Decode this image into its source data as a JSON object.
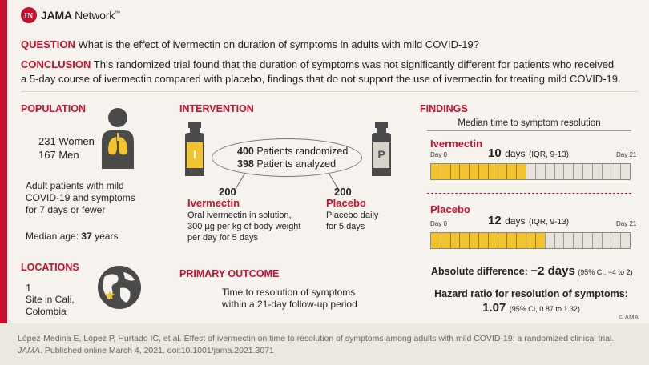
{
  "header": {
    "brand": "JAMA",
    "brand_rest": "Network",
    "tm": "™"
  },
  "question": {
    "label": "QUESTION",
    "text": "What is the effect of ivermectin on duration of symptoms in adults with mild COVID-19?"
  },
  "conclusion": {
    "label": "CONCLUSION",
    "line1": "This randomized trial found that the duration of symptoms was not significantly different for patients who received",
    "line2": "a 5-day course of ivermectin compared with placebo, findings that do not support the use of ivermectin for treating mild COVID-19."
  },
  "population": {
    "heading": "POPULATION",
    "women_count": "231",
    "women_label": "Women",
    "men_count": "167",
    "men_label": "Men",
    "desc1": "Adult patients with mild",
    "desc2": "COVID-19 and symptoms",
    "desc3": "for 7 days or fewer",
    "age_label": "Median age:",
    "age_value": "37",
    "age_unit": "years"
  },
  "locations": {
    "heading": "LOCATIONS",
    "count": "1",
    "line1": "Site in Cali,",
    "line2": "Colombia"
  },
  "intervention": {
    "heading": "INTERVENTION",
    "randomized_count": "400",
    "randomized_label": "Patients randomized",
    "analyzed_count": "398",
    "analyzed_label": "Patients analyzed",
    "vial_ivermectin": "I",
    "vial_placebo": "P",
    "ivermectin_n": "200",
    "ivermectin_name": "Ivermectin",
    "ivermectin_d1": "Oral ivermectin in solution,",
    "ivermectin_d2": "300 µg per kg of body weight",
    "ivermectin_d3": "per day for 5 days",
    "placebo_n": "200",
    "placebo_name": "Placebo",
    "placebo_d1": "Placebo daily",
    "placebo_d2": "for 5 days"
  },
  "primary_outcome": {
    "heading": "PRIMARY OUTCOME",
    "line1": "Time to resolution of symptoms",
    "line2": "within a 21-day follow-up period"
  },
  "findings": {
    "heading": "FINDINGS",
    "subheading": "Median time to symptom resolution",
    "ivermectin": {
      "name": "Ivermectin",
      "value": "10",
      "unit": "days",
      "iqr": "(IQR, 9-13)",
      "day_start": "Day 0",
      "day_end": "Day 21"
    },
    "placebo": {
      "name": "Placebo",
      "value": "12",
      "unit": "days",
      "iqr": "(IQR, 9-13)",
      "day_start": "Day 0",
      "day_end": "Day 21"
    },
    "abs_label": "Absolute difference:",
    "abs_value": "−2 days",
    "abs_ci": "(95% CI, −4 to 2)",
    "hr_label": "Hazard ratio for resolution of symptoms:",
    "hr_value": "1.07",
    "hr_ci": "(95% CI, 0.87 to 1.32)",
    "copyright": "© AMA"
  },
  "chart_data": {
    "type": "bar",
    "title": "Median time to symptom resolution",
    "categories": [
      "Ivermectin",
      "Placebo"
    ],
    "values": [
      10,
      12
    ],
    "xlim": [
      0,
      21
    ],
    "unit": "days",
    "colors": {
      "fill": "#f2c32c",
      "track": "#e8e3da"
    }
  },
  "footer": {
    "line1": "López-Medina E, López P, Hurtado IC, et al. Effect of ivermectin on time to resolution of symptoms among adults with mild COVID-19: a randomized clinical trial.",
    "journal": "JAMA",
    "line2_rest": ". Published online March 4, 2021. doi:10.1001/jama.2021.3071"
  },
  "colors": {
    "accent": "#c8102e",
    "bar_fill": "#f2c32c",
    "background": "#f6f3ee"
  }
}
